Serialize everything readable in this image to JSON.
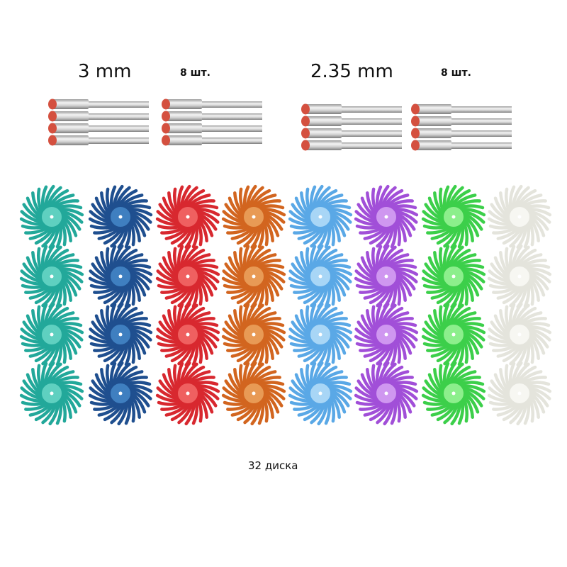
{
  "labels": {
    "shank_1": "3 mm",
    "count_1": "8 шт.",
    "shank_2": "2.35 mm",
    "count_2": "8 шт.",
    "discs": "32 диска"
  }
}
